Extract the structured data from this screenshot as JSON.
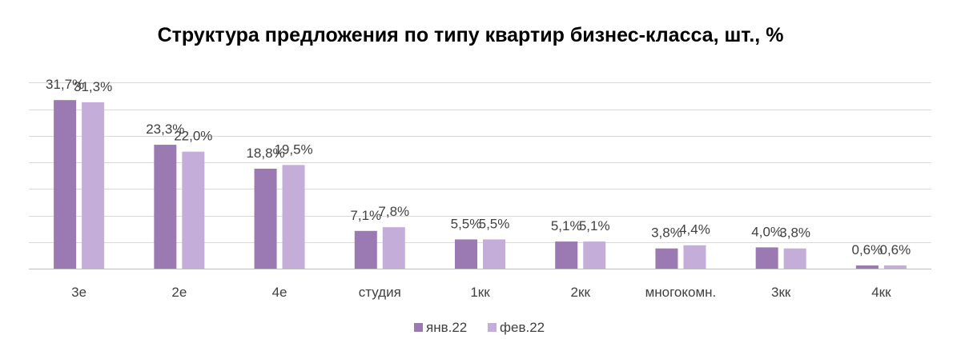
{
  "chart_data": {
    "type": "bar",
    "title": "Структура предложения по типу квартир бизнес-класса, шт., %",
    "categories": [
      "3е",
      "2е",
      "4е",
      "студия",
      "1кк",
      "2кк",
      "многокомн.",
      "3кк",
      "4кк"
    ],
    "series": [
      {
        "name": "янв.22",
        "color": "#9b79b3",
        "values": [
          31.7,
          23.3,
          18.8,
          7.1,
          5.5,
          5.1,
          3.8,
          4.0,
          0.6
        ],
        "labels": [
          "31,7%",
          "23,3%",
          "18,8%",
          "7,1%",
          "5,5%",
          "5,1%",
          "3,8%",
          "4,0%",
          "0,6%"
        ]
      },
      {
        "name": "фев.22",
        "color": "#c4aed9",
        "values": [
          31.3,
          22.0,
          19.5,
          7.8,
          5.5,
          5.1,
          4.4,
          3.8,
          0.6
        ],
        "labels": [
          "31,3%",
          "22,0%",
          "19,5%",
          "7,8%",
          "5,5%",
          "5,1%",
          "4,4%",
          "3,8%",
          "0,6%"
        ]
      }
    ],
    "ylim": [
      0,
      35
    ],
    "grid": true,
    "legend": "bottom",
    "xlabel": "",
    "ylabel": ""
  }
}
